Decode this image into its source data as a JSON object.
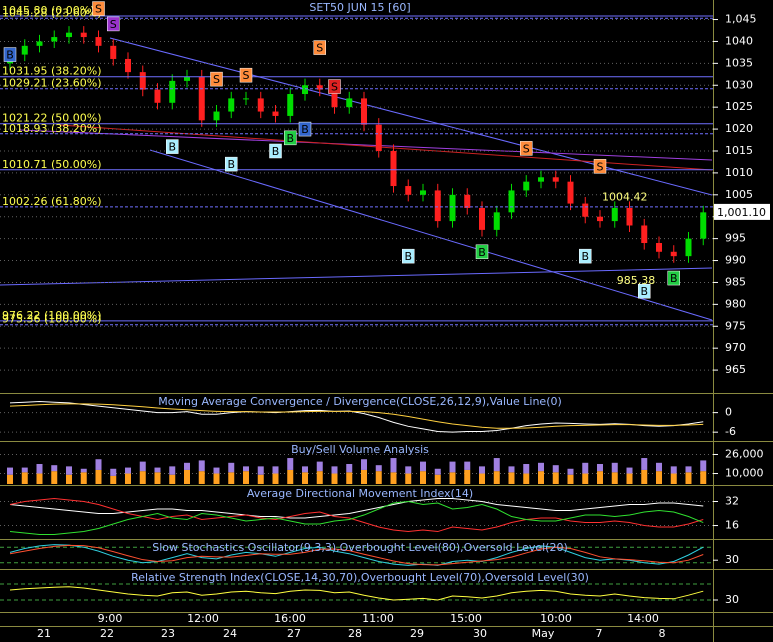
{
  "chart_data": [
    {
      "type": "candlestick",
      "title": "SET50 JUN 15   [60]",
      "ylim": [
        960,
        1049
      ],
      "yticks": [
        965,
        970,
        975,
        980,
        985,
        990,
        995,
        1000,
        1005,
        1010,
        1015,
        1020,
        1025,
        1030,
        1035,
        1040,
        {
          "value": 1045,
          "label": "1,045"
        }
      ],
      "grid": true,
      "up_color": "#00dd00",
      "down_color": "#ff2020",
      "open": [
        1035,
        1037,
        1039,
        1040,
        1041,
        1042,
        1041,
        1039,
        1036,
        1033,
        1029,
        1026,
        1031,
        1032,
        1022,
        1024,
        1027,
        1027,
        1024,
        1023,
        1028,
        1030,
        1029,
        1025,
        1027,
        1021,
        1015,
        1007,
        1005,
        1006,
        999,
        1005,
        1002,
        997,
        1001,
        1006,
        1008,
        1009,
        1008,
        1003,
        1000,
        999,
        1002,
        998,
        994,
        992,
        991,
        995
      ],
      "high": [
        1038.5,
        1040.5,
        1041.5,
        1042.5,
        1043.5,
        1043.5,
        1042.5,
        1040.5,
        1037.5,
        1034.5,
        1030.5,
        1032.5,
        1033.5,
        1033.5,
        1025.5,
        1028.5,
        1028.5,
        1028.5,
        1025.5,
        1029.5,
        1031.5,
        1031.5,
        1030.5,
        1028.5,
        1028.5,
        1022.5,
        1016.5,
        1008.5,
        1007.5,
        1007.5,
        1006.5,
        1006.5,
        1003.5,
        1002.5,
        1007.5,
        1009.5,
        1010.5,
        1010.5,
        1009.5,
        1004.5,
        1001.5,
        1003.5,
        1003.5,
        999.5,
        995.5,
        993.5,
        996.5,
        1002.5
      ],
      "low": [
        1033.5,
        1035.5,
        1037.5,
        1038.5,
        1039.5,
        1039.5,
        1037.5,
        1034.5,
        1031.5,
        1027.5,
        1024.5,
        1024.5,
        1029.5,
        1020.5,
        1020.5,
        1022.5,
        1025.5,
        1022.5,
        1021.5,
        1021.5,
        1026.5,
        1027.5,
        1023.5,
        1023.5,
        1019.5,
        1013.5,
        1005.5,
        1003.5,
        1003.5,
        997.5,
        997.5,
        1000.5,
        995.5,
        995.5,
        999.5,
        1004.5,
        1006.5,
        1006.5,
        1001.5,
        998.5,
        997.5,
        997.5,
        996.5,
        992.5,
        990.5,
        989.5,
        989.5,
        993.5
      ],
      "close": [
        1037,
        1039,
        1040,
        1041,
        1042,
        1041,
        1039,
        1036,
        1033,
        1029,
        1026,
        1031,
        1032,
        1022,
        1024,
        1027,
        1027,
        1024,
        1023,
        1028,
        1030,
        1029,
        1025,
        1027,
        1021,
        1015,
        1007,
        1005,
        1006,
        999,
        1005,
        1002,
        997,
        1001,
        1006,
        1008,
        1009,
        1008,
        1003,
        1000,
        999,
        1002,
        998,
        994,
        992,
        991,
        995,
        1001
      ],
      "fib_levels": [
        {
          "value": 1045.8,
          "label": "1045.80 (0.00%)"
        },
        {
          "value": 1045.28,
          "label": "1045.28 (23.60%)"
        },
        {
          "value": 1031.95,
          "label": "1031.95 (38.20%)"
        },
        {
          "value": 1029.21,
          "label": "1029.21 (23.60%)"
        },
        {
          "value": 1021.22,
          "label": "1021.22 (50.00%)"
        },
        {
          "value": 1018.93,
          "label": "1018.93 (38.20%)"
        },
        {
          "value": 1010.71,
          "label": "1010.71 (50.00%)"
        },
        {
          "value": 1002.26,
          "label": "1002.26 (61.80%)"
        },
        {
          "value": 976.22,
          "label": "976.22 (100.00%)"
        },
        {
          "value": 975.36,
          "label": "975.36 (100.00%)"
        }
      ],
      "fib_color": "#7070ff",
      "signals": [
        {
          "label": "S",
          "index": 6,
          "value": 1047.5,
          "color": "#ff8c3c"
        },
        {
          "label": "S",
          "index": 7,
          "value": 1044,
          "color": "#9933cc"
        },
        {
          "label": "S",
          "index": 14,
          "value": 1031.4,
          "color": "#ff8c3c"
        },
        {
          "label": "S",
          "index": 16,
          "value": 1032.3,
          "color": "#ff8c3c"
        },
        {
          "label": "S",
          "index": 21,
          "value": 1038.6,
          "color": "#ff8c3c"
        },
        {
          "label": "S",
          "index": 22,
          "value": 1029.7,
          "color": "#dd2222"
        },
        {
          "label": "S",
          "index": 35,
          "value": 1015.6,
          "color": "#ff8c3c"
        },
        {
          "label": "S",
          "index": 40,
          "value": 1011.5,
          "color": "#ff8c3c"
        },
        {
          "label": "B",
          "index": 0,
          "value": 1037,
          "color": "#3366cc"
        },
        {
          "label": "B",
          "index": 11,
          "value": 1016,
          "color": "#aaeeff"
        },
        {
          "label": "B",
          "index": 15,
          "value": 1012,
          "color": "#aaeeff"
        },
        {
          "label": "B",
          "index": 18,
          "value": 1015,
          "color": "#aaeeff"
        },
        {
          "label": "B",
          "index": 19,
          "value": 1018,
          "color": "#22cc44"
        },
        {
          "label": "B",
          "index": 20,
          "value": 1020,
          "color": "#3366cc"
        },
        {
          "label": "B",
          "index": 27,
          "value": 991,
          "color": "#aaeeff"
        },
        {
          "label": "B",
          "index": 32,
          "value": 992,
          "color": "#22cc44"
        },
        {
          "label": "B",
          "index": 39,
          "value": 991,
          "color": "#aaeeff"
        },
        {
          "label": "B",
          "index": 43,
          "value": 983,
          "color": "#aaeeff"
        },
        {
          "label": "B",
          "index": 45,
          "value": 986,
          "color": "#22cc44"
        }
      ],
      "annotations": [
        {
          "value": 1004.42,
          "index": 40
        },
        {
          "value": 985.38,
          "index": 41
        }
      ],
      "last_price": {
        "value": 1001.1,
        "label": "1,001.10"
      },
      "date_labels": [
        "21",
        "22",
        "23",
        "24",
        "27",
        "28",
        "29",
        "30",
        "May",
        "7",
        "8"
      ],
      "time_labels": [
        "9:00",
        "12:00",
        "16:00",
        "11:00",
        "15:00",
        "10:00",
        "14:00"
      ]
    },
    {
      "type": "line",
      "title": "Moving Average Convergence / Divergence(CLOSE,26,12,9),Value Line(0)",
      "ylim": [
        -8.4,
        5.1
      ],
      "yticks": [
        0,
        -6
      ],
      "grid": true,
      "series": [
        {
          "color": "#ffffff",
          "values": [
            3,
            3.2,
            3.4,
            3.2,
            3,
            2.5,
            2,
            1.5,
            1,
            0.5,
            0,
            0,
            0.3,
            -0.5,
            -0.5,
            0,
            0.3,
            0.2,
            0,
            0.3,
            0.6,
            0.7,
            0.4,
            0.5,
            -0.3,
            -1.5,
            -3,
            -4.2,
            -5,
            -5.8,
            -6,
            -5.8,
            -5.8,
            -5.5,
            -4.8,
            -4,
            -3.5,
            -3.2,
            -3.3,
            -3.5,
            -3.6,
            -3.4,
            -3.6,
            -4,
            -4.2,
            -4,
            -3.5,
            -2.8
          ]
        },
        {
          "color": "#ffd040",
          "values": [
            2,
            2.2,
            2.4,
            2.6,
            2.7,
            2.7,
            2.6,
            2.4,
            2.1,
            1.8,
            1.4,
            1.1,
            0.9,
            0.6,
            0.4,
            0.3,
            0.3,
            0.2,
            0.2,
            0.2,
            0.3,
            0.4,
            0.4,
            0.4,
            0.3,
            0,
            -0.5,
            -1.2,
            -2,
            -2.8,
            -3.5,
            -4,
            -4.5,
            -4.8,
            -4.8,
            -4.7,
            -4.5,
            -4.2,
            -4,
            -3.9,
            -3.8,
            -3.7,
            -3.7,
            -3.8,
            -3.9,
            -3.9,
            -3.8,
            -3.6
          ]
        }
      ]
    },
    {
      "type": "bar",
      "title": "Buy/Sell Volume Analysis",
      "ylim": [
        1200,
        34800
      ],
      "yticks": [
        {
          "value": 26000,
          "label": "26,000"
        },
        {
          "value": 10000,
          "label": "10,000"
        }
      ],
      "grid": true,
      "series": [
        {
          "color": "#ffa020",
          "values": [
            9000,
            11000,
            10000,
            12000,
            9000,
            11000,
            13000,
            8000,
            10000,
            12000,
            11000,
            9000,
            13000,
            12000,
            10000,
            11000,
            12000,
            9000,
            10000,
            13000,
            11000,
            12000,
            10000,
            11000,
            13000,
            12000,
            11000,
            10000,
            12000,
            9000,
            11000,
            13000,
            10000,
            12000,
            11000,
            10000,
            12000,
            11000,
            9000,
            10000,
            12000,
            11000,
            10000,
            13000,
            12000,
            10000,
            11000,
            12000
          ]
        },
        {
          "color": "#a080e0",
          "values": [
            6000,
            4000,
            8000,
            5000,
            7000,
            3000,
            9000,
            6000,
            5000,
            8000,
            4000,
            7000,
            6000,
            9000,
            5000,
            8000,
            4000,
            7000,
            6000,
            10000,
            5000,
            8000,
            6000,
            7000,
            9000,
            5000,
            12000,
            6000,
            8000,
            5000,
            9000,
            7000,
            6000,
            11000,
            5000,
            8000,
            7000,
            6000,
            5000,
            9000,
            6000,
            8000,
            5000,
            10000,
            7000,
            6000,
            5000,
            9000
          ]
        }
      ]
    },
    {
      "type": "line",
      "title": "Average Directional Movement Index(14)",
      "ylim": [
        7.7,
        41
      ],
      "yticks": [
        32,
        16
      ],
      "grid": true,
      "series": [
        {
          "color": "#ffffff",
          "values": [
            30,
            29,
            28,
            27,
            26,
            25,
            24,
            24,
            25,
            26,
            27,
            27,
            26,
            26,
            25,
            24,
            23,
            22,
            22,
            21,
            21,
            22,
            23,
            24,
            26,
            28,
            30,
            32,
            33,
            34,
            34,
            33,
            32,
            30,
            29,
            28,
            27,
            26,
            26,
            27,
            28,
            29,
            30,
            30,
            31,
            31,
            30,
            29
          ]
        },
        {
          "color": "#ff3030",
          "values": [
            30,
            32,
            33,
            34,
            33,
            32,
            30,
            27,
            24,
            22,
            20,
            22,
            23,
            20,
            21,
            22,
            23,
            21,
            20,
            22,
            24,
            25,
            22,
            21,
            18,
            15,
            13,
            12,
            13,
            12,
            15,
            14,
            13,
            15,
            18,
            20,
            21,
            21,
            19,
            18,
            18,
            19,
            18,
            16,
            15,
            15,
            17,
            20
          ]
        },
        {
          "color": "#30e030",
          "values": [
            12,
            11,
            10,
            10,
            11,
            12,
            14,
            17,
            20,
            22,
            24,
            21,
            20,
            24,
            23,
            21,
            19,
            20,
            21,
            19,
            17,
            17,
            19,
            20,
            23,
            27,
            31,
            32,
            30,
            31,
            27,
            28,
            30,
            27,
            22,
            20,
            19,
            19,
            21,
            23,
            23,
            22,
            23,
            25,
            26,
            25,
            22,
            18
          ]
        }
      ]
    },
    {
      "type": "line",
      "title": "Slow Stochastics Oscillator(9,3,3),Overbought Level(80),Oversold Level(20)",
      "ylim": [
        0,
        100
      ],
      "yticks": [
        30
      ],
      "levels": [
        80,
        20
      ],
      "grid": false,
      "series": [
        {
          "color": "#30d0e0",
          "values": [
            60,
            75,
            85,
            90,
            88,
            80,
            65,
            45,
            30,
            20,
            25,
            40,
            55,
            40,
            35,
            50,
            60,
            55,
            45,
            60,
            75,
            80,
            65,
            55,
            40,
            25,
            15,
            10,
            15,
            10,
            25,
            30,
            25,
            40,
            60,
            75,
            85,
            80,
            60,
            40,
            30,
            35,
            30,
            20,
            15,
            25,
            50,
            80
          ]
        },
        {
          "color": "#ff5030",
          "values": [
            55,
            65,
            75,
            83,
            87,
            86,
            78,
            63,
            47,
            32,
            25,
            28,
            40,
            45,
            43,
            42,
            48,
            55,
            53,
            53,
            60,
            72,
            73,
            67,
            53,
            40,
            27,
            17,
            13,
            12,
            17,
            22,
            27,
            32,
            42,
            58,
            73,
            80,
            75,
            60,
            43,
            35,
            32,
            28,
            22,
            20,
            30,
            52
          ]
        }
      ]
    },
    {
      "type": "line",
      "title": "Relative Strength Index(CLOSE,14,30,70),Overbought Level(70),Oversold Level(30)",
      "ylim": [
        0,
        100
      ],
      "yticks": [
        30
      ],
      "levels": [
        70,
        30
      ],
      "grid": false,
      "series": [
        {
          "color": "#ffff40",
          "values": [
            55,
            58,
            60,
            62,
            63,
            60,
            55,
            50,
            45,
            42,
            40,
            48,
            50,
            42,
            45,
            50,
            52,
            48,
            46,
            52,
            55,
            54,
            48,
            50,
            42,
            35,
            30,
            32,
            34,
            30,
            40,
            38,
            35,
            40,
            48,
            52,
            54,
            52,
            45,
            42,
            40,
            45,
            40,
            36,
            34,
            33,
            42,
            52
          ]
        }
      ]
    }
  ]
}
